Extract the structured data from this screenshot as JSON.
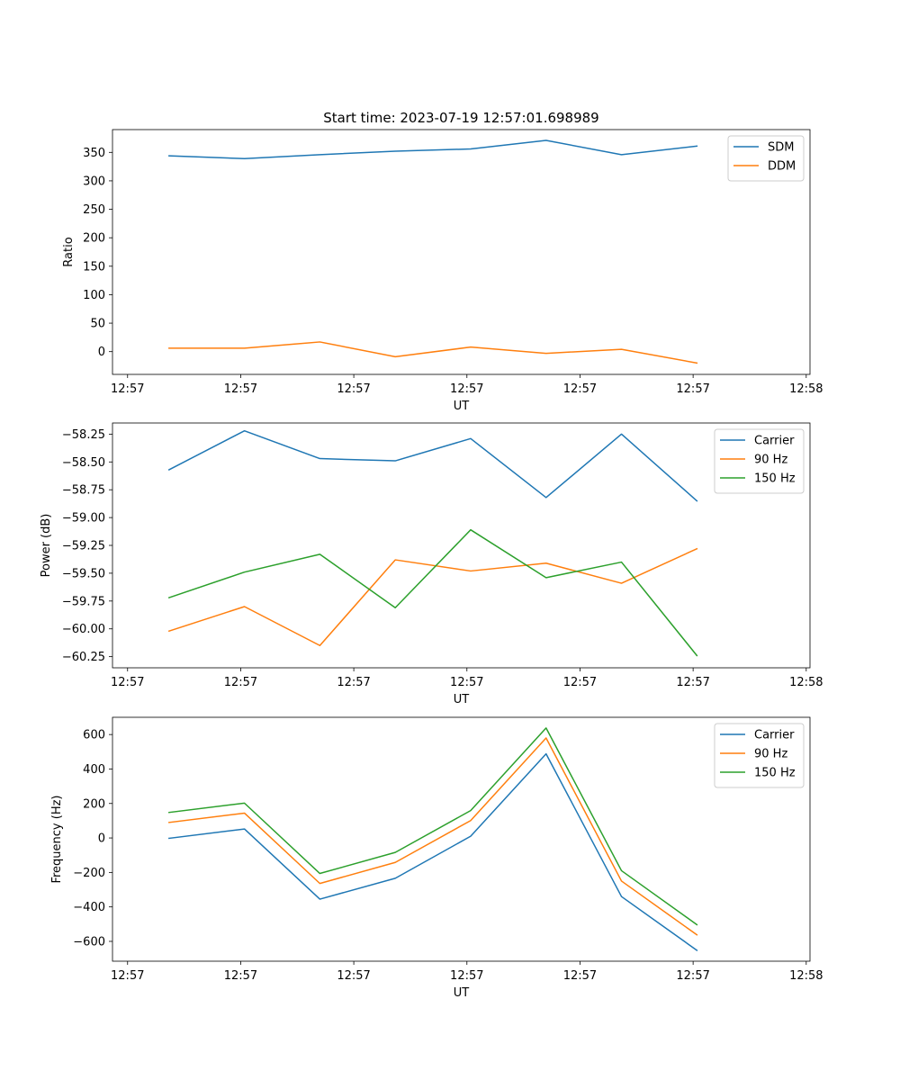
{
  "chart_data": [
    {
      "type": "line",
      "title": "Start time: 2023-07-19 12:57:01.698989",
      "xlabel": "UT",
      "ylabel": "Ratio",
      "x": [
        1,
        2,
        3,
        4,
        5,
        6,
        7,
        8
      ],
      "xlim": [
        0.25,
        9.5
      ],
      "xticks": [
        0.45,
        1.95,
        3.45,
        4.95,
        6.45,
        7.95,
        9.45
      ],
      "xtick_labels": [
        "12:57",
        "12:57",
        "12:57",
        "12:57",
        "12:57",
        "12:57",
        "12:58"
      ],
      "ylim": [
        -40,
        390
      ],
      "yticks": [
        0,
        50,
        100,
        150,
        200,
        250,
        300,
        350
      ],
      "ytick_labels": [
        "0",
        "50",
        "100",
        "150",
        "200",
        "250",
        "300",
        "350"
      ],
      "legend_position": "top-right",
      "series": [
        {
          "name": "SDM",
          "color": "#1f77b4",
          "values": [
            344,
            339,
            346,
            352,
            356,
            371,
            346,
            361
          ]
        },
        {
          "name": "DDM",
          "color": "#ff7f0e",
          "values": [
            6,
            6,
            17,
            -9,
            8,
            -3,
            4,
            -20
          ]
        }
      ]
    },
    {
      "type": "line",
      "title": "",
      "xlabel": "UT",
      "ylabel": "Power (dB)",
      "x": [
        1,
        2,
        3,
        4,
        5,
        6,
        7,
        8
      ],
      "xlim": [
        0.25,
        9.5
      ],
      "xticks": [
        0.45,
        1.95,
        3.45,
        4.95,
        6.45,
        7.95,
        9.45
      ],
      "xtick_labels": [
        "12:57",
        "12:57",
        "12:57",
        "12:57",
        "12:57",
        "12:57",
        "12:58"
      ],
      "ylim": [
        -60.35,
        -58.15
      ],
      "yticks": [
        -60.25,
        -60.0,
        -59.75,
        -59.5,
        -59.25,
        -59.0,
        -58.75,
        -58.5,
        -58.25
      ],
      "ytick_labels": [
        "−60.25",
        "−60.00",
        "−59.75",
        "−59.50",
        "−59.25",
        "−59.00",
        "−58.75",
        "−58.50",
        "−58.25"
      ],
      "legend_position": "top-right",
      "series": [
        {
          "name": "Carrier",
          "color": "#1f77b4",
          "values": [
            -58.57,
            -58.22,
            -58.47,
            -58.49,
            -58.29,
            -58.82,
            -58.25,
            -58.85
          ]
        },
        {
          "name": "90 Hz",
          "color": "#ff7f0e",
          "values": [
            -60.02,
            -59.8,
            -60.15,
            -59.38,
            -59.48,
            -59.41,
            -59.59,
            -59.28
          ]
        },
        {
          "name": "150 Hz",
          "color": "#2ca02c",
          "values": [
            -59.72,
            -59.49,
            -59.33,
            -59.81,
            -59.11,
            -59.54,
            -59.4,
            -60.24
          ]
        }
      ]
    },
    {
      "type": "line",
      "title": "",
      "xlabel": "UT",
      "ylabel": "Frequency (Hz)",
      "x": [
        1,
        2,
        3,
        4,
        5,
        6,
        7,
        8
      ],
      "xlim": [
        0.25,
        9.5
      ],
      "xticks": [
        0.45,
        1.95,
        3.45,
        4.95,
        6.45,
        7.95,
        9.45
      ],
      "xtick_labels": [
        "12:57",
        "12:57",
        "12:57",
        "12:57",
        "12:57",
        "12:57",
        "12:58"
      ],
      "ylim": [
        -715,
        700
      ],
      "yticks": [
        -600,
        -400,
        -200,
        0,
        200,
        400,
        600
      ],
      "ytick_labels": [
        "−600",
        "−400",
        "−200",
        "0",
        "200",
        "400",
        "600"
      ],
      "legend_position": "top-right",
      "series": [
        {
          "name": "Carrier",
          "color": "#1f77b4",
          "values": [
            -2,
            52,
            -355,
            -234,
            10,
            488,
            -340,
            -652
          ]
        },
        {
          "name": "90 Hz",
          "color": "#ff7f0e",
          "values": [
            90,
            144,
            -264,
            -142,
            101,
            580,
            -250,
            -562
          ]
        },
        {
          "name": "150 Hz",
          "color": "#2ca02c",
          "values": [
            148,
            202,
            -206,
            -84,
            159,
            638,
            -190,
            -503
          ]
        }
      ]
    }
  ]
}
